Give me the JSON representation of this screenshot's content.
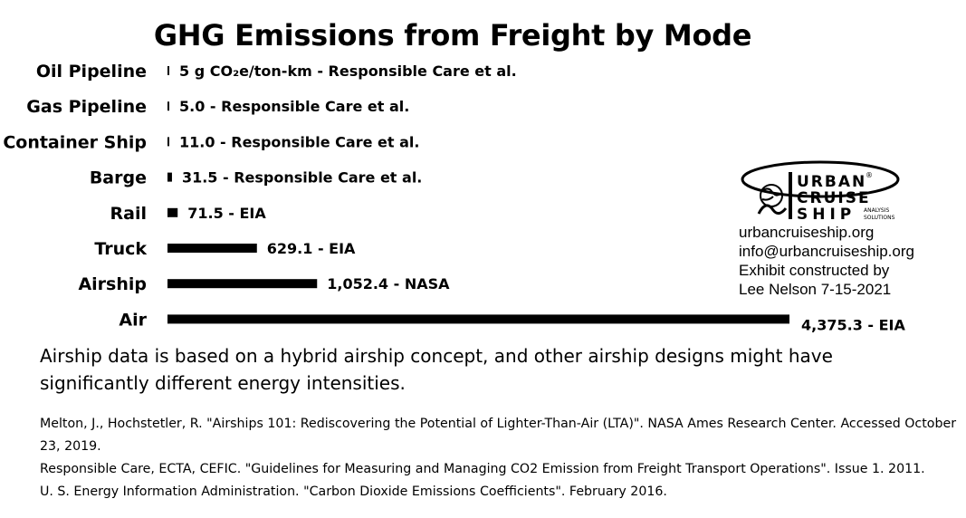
{
  "chart_data": {
    "type": "bar",
    "orientation": "horizontal",
    "title": "GHG Emissions from Freight by Mode",
    "categories": [
      "Oil Pipeline",
      "Gas Pipeline",
      "Container Ship",
      "Barge",
      "Rail",
      "Truck",
      "Airship",
      "Air"
    ],
    "values": [
      5.0,
      5.0,
      11.0,
      31.5,
      71.5,
      629.1,
      1052.4,
      4375.3
    ],
    "data_labels": [
      "5 g CO₂e/ton-km - Responsible Care et al.",
      "5.0 - Responsible Care et al.",
      "11.0 - Responsible Care et al.",
      "31.5 - Responsible Care et al.",
      "71.5 - EIA",
      "629.1 - EIA",
      "1,052.4 - NASA",
      "4,375.3 - EIA"
    ],
    "xlim": [
      0,
      4375.3
    ],
    "bar_color": "#000000",
    "grid": false
  },
  "logo": {
    "line1": "URBAN",
    "line2": "CRUISE",
    "line3": "SHIP",
    "tag1": "ANALYSIS",
    "tag2": "SOLUTIONS",
    "registered": "®"
  },
  "contact": {
    "website": "urbancruiseship.org",
    "email": "info@urbancruiseship.org",
    "credit1": "Exhibit constructed by",
    "credit2": "Lee Nelson 7-15-2021"
  },
  "note": "Airship data is based on a hybrid airship concept, and other airship designs might have significantly different energy intensities.",
  "references": [
    "Melton, J., Hochstetler, R. \"Airships 101: Rediscovering the Potential of Lighter-Than-Air (LTA)\". NASA Ames Research Center. Accessed October 23, 2019.",
    "Responsible Care, ECTA, CEFIC. \"Guidelines for Measuring and Managing CO2 Emission from Freight Transport Operations\". Issue 1. 2011.",
    "U. S. Energy Information Administration. \"Carbon Dioxide Emissions Coefficients\". February 2016."
  ]
}
